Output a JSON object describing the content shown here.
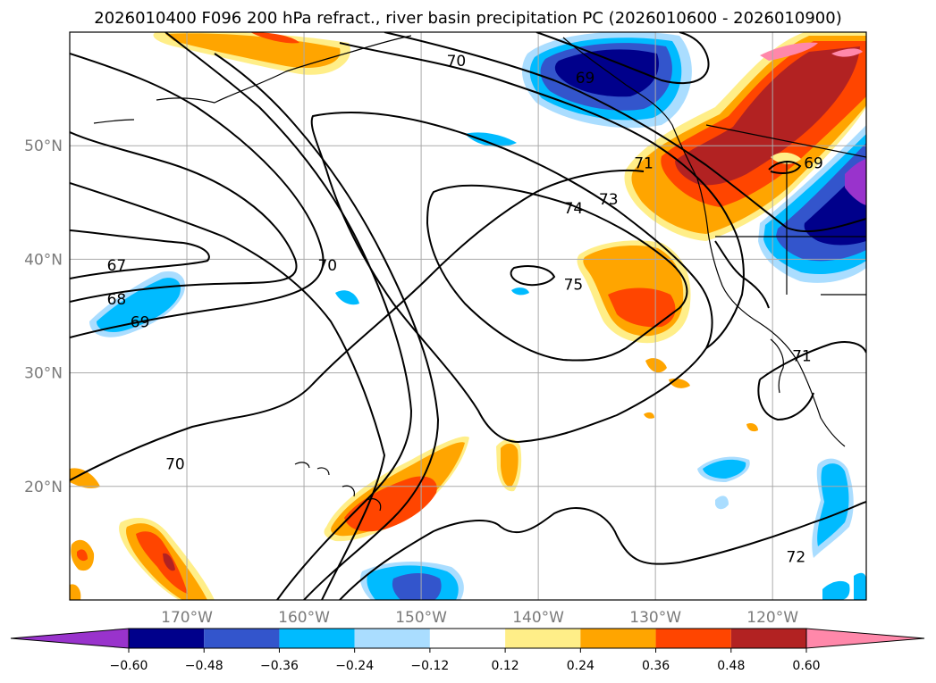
{
  "title": "2026010400 F096 200 hPa refract., river basin precipitation PC (2026010600 - 2026010900)",
  "map": {
    "lon_range": [
      -180,
      -112
    ],
    "lat_range": [
      10,
      60
    ],
    "lon_gridlines": [
      -170,
      -160,
      -150,
      -140,
      -130,
      -120
    ],
    "lat_gridlines": [
      20,
      30,
      40,
      50
    ],
    "lon_tick_labels": [
      "170°W",
      "160°W",
      "150°W",
      "140°W",
      "130°W",
      "120°W"
    ],
    "lat_tick_labels": [
      "20°N",
      "30°N",
      "40°N",
      "50°N"
    ]
  },
  "colorbar": {
    "colors": [
      "#9933cc",
      "#00008b",
      "#3355cc",
      "#00bbff",
      "#aaddff",
      "#ffffff",
      "#ffee88",
      "#ffa500",
      "#ff4500",
      "#b22222",
      "#ff88aa"
    ],
    "tick_labels": [
      "−0.60",
      "−0.48",
      "−0.36",
      "−0.24",
      "−0.12",
      "0.12",
      "0.24",
      "0.36",
      "0.48",
      "0.60"
    ]
  },
  "contour_labels": [
    {
      "text": "67",
      "lon": -176,
      "lat": 39.5
    },
    {
      "text": "68",
      "lon": -176,
      "lat": 36.5
    },
    {
      "text": "69",
      "lon": -174,
      "lat": 34.5
    },
    {
      "text": "70",
      "lon": -171,
      "lat": 22
    },
    {
      "text": "70",
      "lon": -158,
      "lat": 39.5
    },
    {
      "text": "70",
      "lon": -147,
      "lat": 57.5
    },
    {
      "text": "69",
      "lon": -136,
      "lat": 56
    },
    {
      "text": "71",
      "lon": -131,
      "lat": 48.5
    },
    {
      "text": "73",
      "lon": -134,
      "lat": 45.3
    },
    {
      "text": "74",
      "lon": -137,
      "lat": 44.5
    },
    {
      "text": "75",
      "lon": -137,
      "lat": 37.8
    },
    {
      "text": "72",
      "lon": -118,
      "lat": 13.8
    },
    {
      "text": "71",
      "lon": -117.5,
      "lat": 31.5
    },
    {
      "text": "69",
      "lon": -116.5,
      "lat": 48.5
    }
  ]
}
